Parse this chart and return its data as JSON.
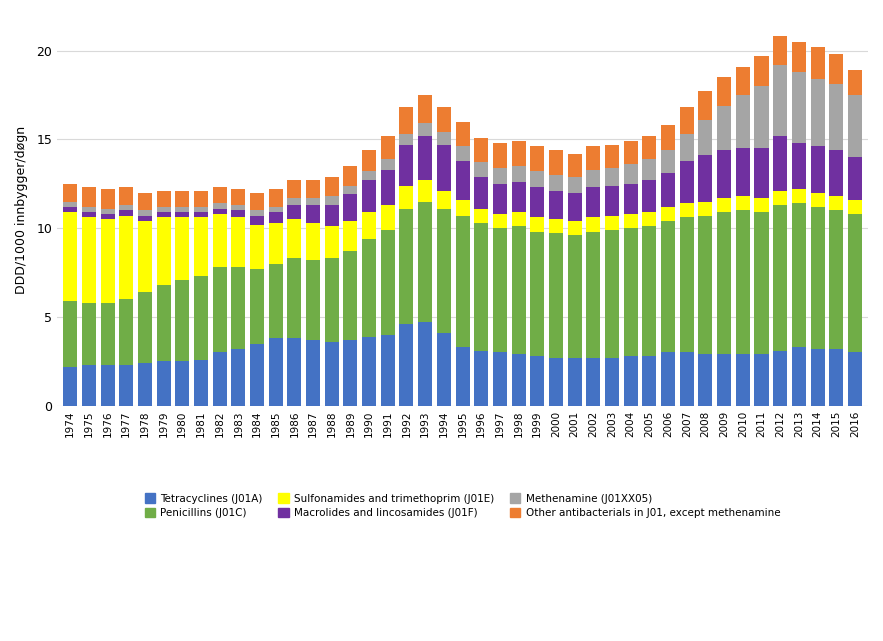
{
  "years": [
    1974,
    1975,
    1976,
    1977,
    1978,
    1979,
    1980,
    1981,
    1982,
    1983,
    1984,
    1985,
    1986,
    1987,
    1988,
    1989,
    1990,
    1991,
    1992,
    1993,
    1994,
    1995,
    1996,
    1997,
    1998,
    1999,
    2000,
    2001,
    2002,
    2003,
    2004,
    2005,
    2006,
    2007,
    2008,
    2009,
    2010,
    2011,
    2012,
    2013,
    2014,
    2015,
    2016
  ],
  "tetracyclines": [
    2.2,
    2.3,
    2.3,
    2.3,
    2.4,
    2.5,
    2.5,
    2.6,
    3.0,
    3.2,
    3.5,
    3.8,
    3.8,
    3.7,
    3.6,
    3.7,
    3.9,
    4.0,
    4.6,
    4.7,
    4.1,
    3.3,
    3.1,
    3.0,
    2.9,
    2.8,
    2.7,
    2.7,
    2.7,
    2.7,
    2.8,
    2.8,
    3.0,
    3.0,
    2.9,
    2.9,
    2.9,
    2.9,
    3.1,
    3.3,
    3.2,
    3.2,
    3.0
  ],
  "penicillins": [
    3.7,
    3.5,
    3.5,
    3.7,
    4.0,
    4.3,
    4.6,
    4.7,
    4.8,
    4.6,
    4.2,
    4.2,
    4.5,
    4.5,
    4.7,
    5.0,
    5.5,
    5.9,
    6.5,
    6.8,
    7.0,
    7.4,
    7.2,
    7.0,
    7.2,
    7.0,
    7.0,
    6.9,
    7.1,
    7.2,
    7.2,
    7.3,
    7.4,
    7.6,
    7.8,
    8.0,
    8.1,
    8.0,
    8.2,
    8.1,
    8.0,
    7.8,
    7.8
  ],
  "sulfonamides": [
    5.0,
    4.8,
    4.7,
    4.7,
    4.0,
    3.8,
    3.5,
    3.3,
    3.0,
    2.8,
    2.5,
    2.3,
    2.2,
    2.1,
    1.8,
    1.7,
    1.5,
    1.4,
    1.3,
    1.2,
    1.0,
    0.9,
    0.8,
    0.8,
    0.8,
    0.8,
    0.8,
    0.8,
    0.8,
    0.8,
    0.8,
    0.8,
    0.8,
    0.8,
    0.8,
    0.8,
    0.8,
    0.8,
    0.8,
    0.8,
    0.8,
    0.8,
    0.8
  ],
  "macrolides": [
    0.3,
    0.3,
    0.3,
    0.3,
    0.3,
    0.3,
    0.3,
    0.3,
    0.3,
    0.4,
    0.5,
    0.6,
    0.8,
    1.0,
    1.2,
    1.5,
    1.8,
    2.0,
    2.3,
    2.5,
    2.6,
    2.2,
    1.8,
    1.7,
    1.7,
    1.7,
    1.6,
    1.6,
    1.7,
    1.7,
    1.7,
    1.8,
    1.9,
    2.4,
    2.6,
    2.7,
    2.7,
    2.8,
    3.1,
    2.6,
    2.6,
    2.6,
    2.4
  ],
  "methenamine": [
    0.3,
    0.3,
    0.3,
    0.3,
    0.3,
    0.3,
    0.3,
    0.3,
    0.3,
    0.3,
    0.3,
    0.3,
    0.4,
    0.4,
    0.5,
    0.5,
    0.5,
    0.6,
    0.6,
    0.7,
    0.7,
    0.8,
    0.8,
    0.9,
    0.9,
    0.9,
    0.9,
    0.9,
    1.0,
    1.0,
    1.1,
    1.2,
    1.3,
    1.5,
    2.0,
    2.5,
    3.0,
    3.5,
    4.0,
    4.0,
    3.8,
    3.7,
    3.5
  ],
  "other": [
    1.0,
    1.1,
    1.1,
    1.0,
    1.0,
    0.9,
    0.9,
    0.9,
    0.9,
    0.9,
    1.0,
    1.0,
    1.0,
    1.0,
    1.1,
    1.1,
    1.2,
    1.3,
    1.5,
    1.6,
    1.4,
    1.4,
    1.4,
    1.4,
    1.4,
    1.4,
    1.4,
    1.3,
    1.3,
    1.3,
    1.3,
    1.3,
    1.4,
    1.5,
    1.6,
    1.6,
    1.6,
    1.7,
    1.6,
    1.7,
    1.8,
    1.7,
    1.4
  ],
  "colors": {
    "tetracyclines": "#4472c4",
    "penicillins": "#70ad47",
    "sulfonamides": "#ffff00",
    "macrolides": "#7030a0",
    "methenamine": "#a5a5a5",
    "other": "#ed7d31"
  },
  "ylabel": "DDD/1000 innbygger/døgn",
  "ylim": [
    0,
    22
  ],
  "yticks": [
    0,
    5,
    10,
    15,
    20
  ],
  "legend_labels": {
    "tetracyclines": "Tetracyclines (J01A)",
    "penicillins": "Penicillins (J01C)",
    "sulfonamides": "Sulfonamides and trimethoprim (J01E)",
    "macrolides": "Macrolides and lincosamides (J01F)",
    "methenamine": "Methenamine (J01XX05)",
    "other": "Other antibacterials in J01, except methenamine"
  },
  "background_color": "#ffffff",
  "grid_color": "#d9d9d9",
  "figsize": [
    8.83,
    6.41
  ],
  "dpi": 100
}
